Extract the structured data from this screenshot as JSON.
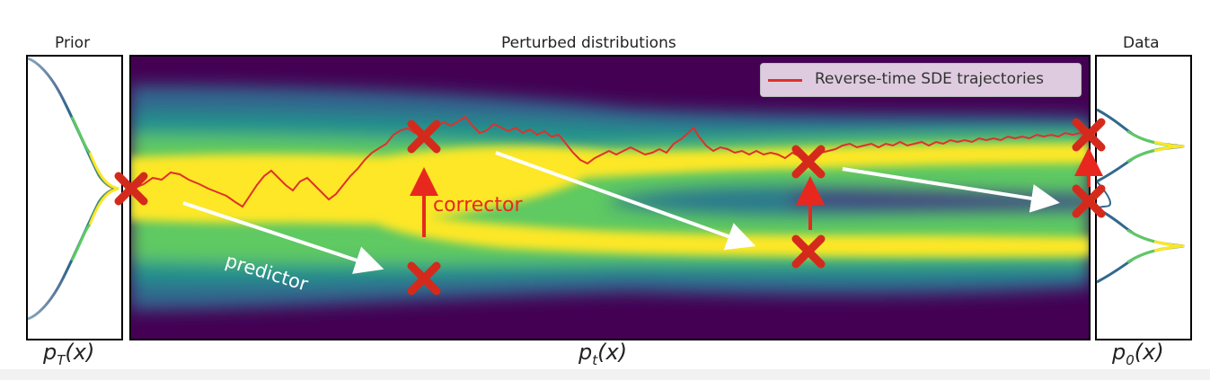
{
  "panels": {
    "prior_title": "Prior",
    "middle_title": "Perturbed distributions",
    "data_title": "Data",
    "prior_label_base": "p",
    "prior_label_sub": "T",
    "prior_label_arg": "(x)",
    "middle_label_base": "p",
    "middle_label_sub": "t",
    "middle_label_arg": "(x)",
    "data_label_base": "p",
    "data_label_sub": "0",
    "data_label_arg": "(x)"
  },
  "legend": {
    "label": "Reverse-time SDE trajectories",
    "line_color": "#e0302a"
  },
  "annotations": {
    "predictor": "predictor",
    "corrector": "corrector"
  },
  "colors": {
    "viridis_dark": "#440154",
    "viridis_blue": "#31688e",
    "viridis_teal": "#21918c",
    "viridis_green": "#5ec962",
    "viridis_yellow": "#fde725",
    "marker_red": "#d42a1c",
    "trajectory_red": "#e0302a",
    "arrow_white": "#ffffff"
  }
}
